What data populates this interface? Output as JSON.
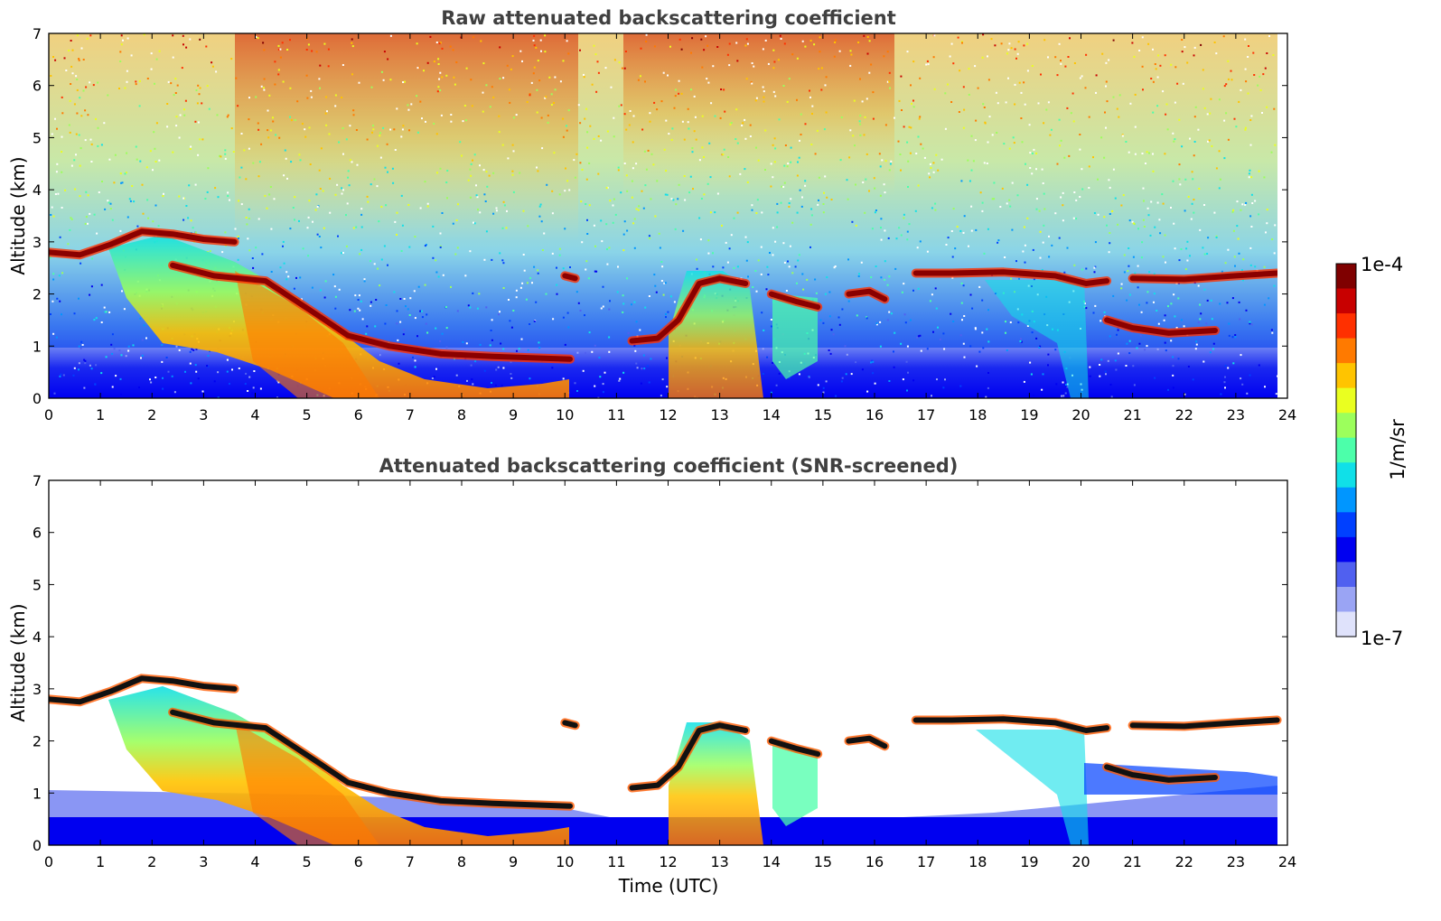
{
  "chart_data": [
    {
      "type": "heatmap",
      "title": "Raw attenuated backscattering coefficient",
      "ylabel": "Altitude (km)",
      "xlabel": "",
      "xlim": [
        0,
        24
      ],
      "ylim": [
        0,
        7
      ],
      "xticks": [
        "0",
        "1",
        "2",
        "3",
        "4",
        "5",
        "6",
        "7",
        "8",
        "9",
        "10",
        "11",
        "12",
        "13",
        "14",
        "15",
        "16",
        "17",
        "18",
        "19",
        "20",
        "21",
        "22",
        "23",
        "24"
      ],
      "yticks": [
        "0",
        "1",
        "2",
        "3",
        "4",
        "5",
        "6",
        "7"
      ],
      "features": [
        {
          "kind": "cloud_top",
          "points": [
            [
              0,
              2.8
            ],
            [
              0.6,
              2.75
            ],
            [
              1.2,
              2.95
            ],
            [
              1.8,
              3.2
            ],
            [
              2.4,
              3.15
            ],
            [
              3.0,
              3.05
            ],
            [
              3.6,
              3.0
            ]
          ]
        },
        {
          "kind": "cloud_top",
          "points": [
            [
              2.4,
              2.55
            ],
            [
              3.2,
              2.35
            ],
            [
              4.2,
              2.25
            ],
            [
              5.2,
              1.6
            ],
            [
              5.8,
              1.2
            ],
            [
              6.6,
              1.0
            ],
            [
              7.6,
              0.85
            ],
            [
              8.6,
              0.8
            ],
            [
              10.1,
              0.75
            ]
          ]
        },
        {
          "kind": "cloud_top",
          "points": [
            [
              10.0,
              2.35
            ],
            [
              10.2,
              2.3
            ]
          ]
        },
        {
          "kind": "cloud_top",
          "points": [
            [
              11.3,
              1.1
            ],
            [
              11.8,
              1.15
            ],
            [
              12.2,
              1.5
            ],
            [
              12.6,
              2.2
            ],
            [
              13.0,
              2.3
            ],
            [
              13.5,
              2.2
            ]
          ]
        },
        {
          "kind": "cloud_top",
          "points": [
            [
              14.0,
              2.0
            ],
            [
              14.5,
              1.85
            ],
            [
              14.9,
              1.75
            ]
          ]
        },
        {
          "kind": "cloud_top",
          "points": [
            [
              15.5,
              2.0
            ],
            [
              15.9,
              2.05
            ],
            [
              16.2,
              1.9
            ]
          ]
        },
        {
          "kind": "cloud_top",
          "points": [
            [
              16.8,
              2.4
            ],
            [
              17.5,
              2.4
            ],
            [
              18.5,
              2.42
            ],
            [
              19.5,
              2.35
            ],
            [
              20.1,
              2.2
            ],
            [
              20.5,
              2.25
            ]
          ]
        },
        {
          "kind": "cloud_top",
          "points": [
            [
              20.5,
              1.5
            ],
            [
              21.0,
              1.35
            ],
            [
              21.7,
              1.25
            ],
            [
              22.6,
              1.3
            ]
          ]
        },
        {
          "kind": "cloud_top",
          "points": [
            [
              21.0,
              2.3
            ],
            [
              22.0,
              2.28
            ],
            [
              23.0,
              2.35
            ],
            [
              23.8,
              2.4
            ]
          ]
        }
      ]
    },
    {
      "type": "heatmap",
      "title": "Attenuated backscattering coefficient (SNR-screened)",
      "ylabel": "Altitude (km)",
      "xlabel": "Time (UTC)",
      "xlim": [
        0,
        24
      ],
      "ylim": [
        0,
        7
      ],
      "xticks": [
        "0",
        "1",
        "2",
        "3",
        "4",
        "5",
        "6",
        "7",
        "8",
        "9",
        "10",
        "11",
        "12",
        "13",
        "14",
        "15",
        "16",
        "17",
        "18",
        "19",
        "20",
        "21",
        "22",
        "23",
        "24"
      ],
      "yticks": [
        "0",
        "1",
        "2",
        "3",
        "4",
        "5",
        "6",
        "7"
      ]
    }
  ],
  "colorbar": {
    "max_label": "1e-4",
    "min_label": "1e-7",
    "unit": "1/m/sr",
    "colors": [
      "#7f0000",
      "#c80000",
      "#ff3000",
      "#ff7a00",
      "#ffc400",
      "#eaff20",
      "#9cff5c",
      "#4cffaa",
      "#10e0e8",
      "#0096ff",
      "#0040ff",
      "#0000f0",
      "#5060f0",
      "#9aa4f4",
      "#dfe2fb"
    ]
  }
}
